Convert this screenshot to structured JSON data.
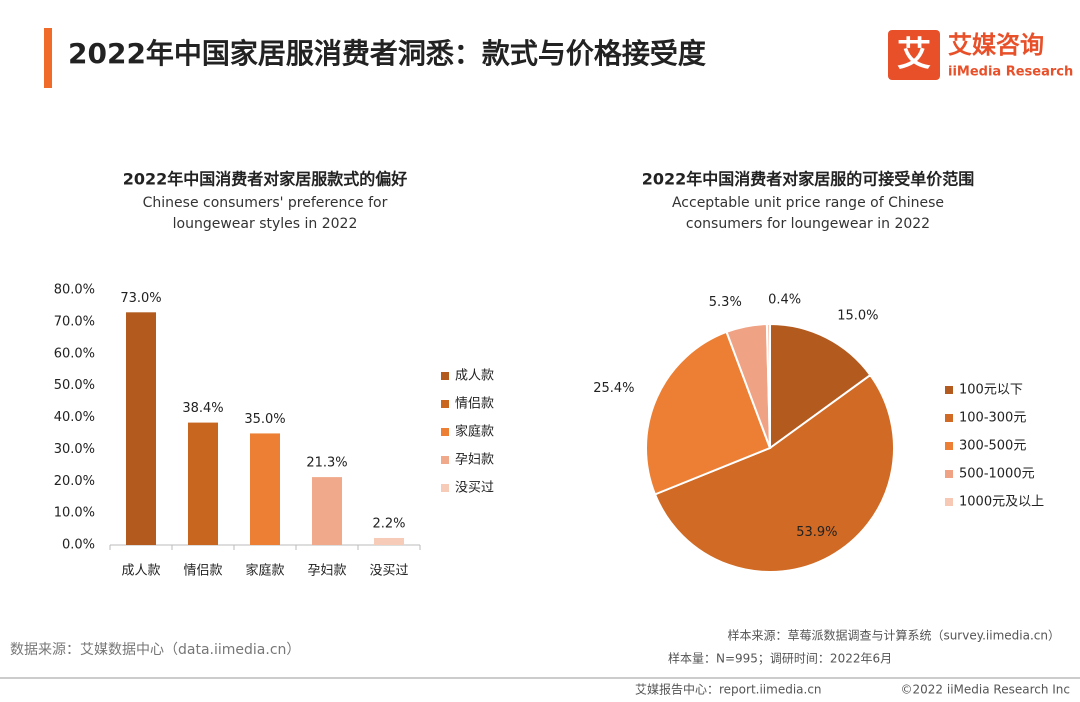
{
  "header": {
    "title": "2022年中国家居服消费者洞悉：款式与价格接受度",
    "logo_mark": "艾",
    "logo_cn": "艾媒咨询",
    "logo_en": "iiMedia Research"
  },
  "chart_data": [
    {
      "type": "bar",
      "title": "2022年中国消费者对家居服款式的偏好",
      "subtitle": [
        "Chinese consumers' preference for",
        "loungewear styles in 2022"
      ],
      "categories": [
        "成人款",
        "情侣款",
        "家庭款",
        "孕妇款",
        "没买过"
      ],
      "values": [
        73.0,
        38.4,
        35.0,
        21.3,
        2.2
      ],
      "value_labels": [
        "73.0%",
        "38.4%",
        "35.0%",
        "21.3%",
        "2.2%"
      ],
      "colors": [
        "#b35a1f",
        "#c8651f",
        "#ec7f34",
        "#f0a98a",
        "#f6cbb8"
      ],
      "ylim": [
        0,
        80
      ],
      "yticks": [
        {
          "value": 0,
          "label": "0.0%"
        },
        {
          "value": 10,
          "label": "10.0%"
        },
        {
          "value": 20,
          "label": "20.0%"
        },
        {
          "value": 30,
          "label": "30.0%"
        },
        {
          "value": 40,
          "label": "40.0%"
        },
        {
          "value": 50,
          "label": "50.0%"
        },
        {
          "value": 60,
          "label": "60.0%"
        },
        {
          "value": 70,
          "label": "70.0%"
        },
        {
          "value": 80,
          "label": "80.0%"
        }
      ],
      "legend": "right"
    },
    {
      "type": "pie",
      "title": "2022年中国消费者对家居服的可接受单价范围",
      "subtitle": [
        "Acceptable unit price range of Chinese",
        "consumers for loungewear in 2022"
      ],
      "categories": [
        "100元以下",
        "100-300元",
        "300-500元",
        "500-1000元",
        "1000元及以上"
      ],
      "values": [
        15.0,
        53.9,
        25.4,
        5.3,
        0.4
      ],
      "value_labels": [
        "15.0%",
        "53.9%",
        "25.4%",
        "5.3%",
        "0.4%"
      ],
      "colors": [
        "#b35a1f",
        "#d06a24",
        "#ec7f34",
        "#f0a384",
        "#f7c9b5"
      ],
      "legend": "right"
    }
  ],
  "footer": {
    "source": "数据来源：艾媒数据中心（data.iimedia.cn）",
    "sample_source": "样本来源：草莓派数据调查与计算系统（survey.iimedia.cn）",
    "sample_size": "样本量：N=995；调研时间：2022年6月",
    "report_center": "艾媒报告中心：report.iimedia.cn",
    "copyright": "©2022  iiMedia Research  Inc"
  }
}
